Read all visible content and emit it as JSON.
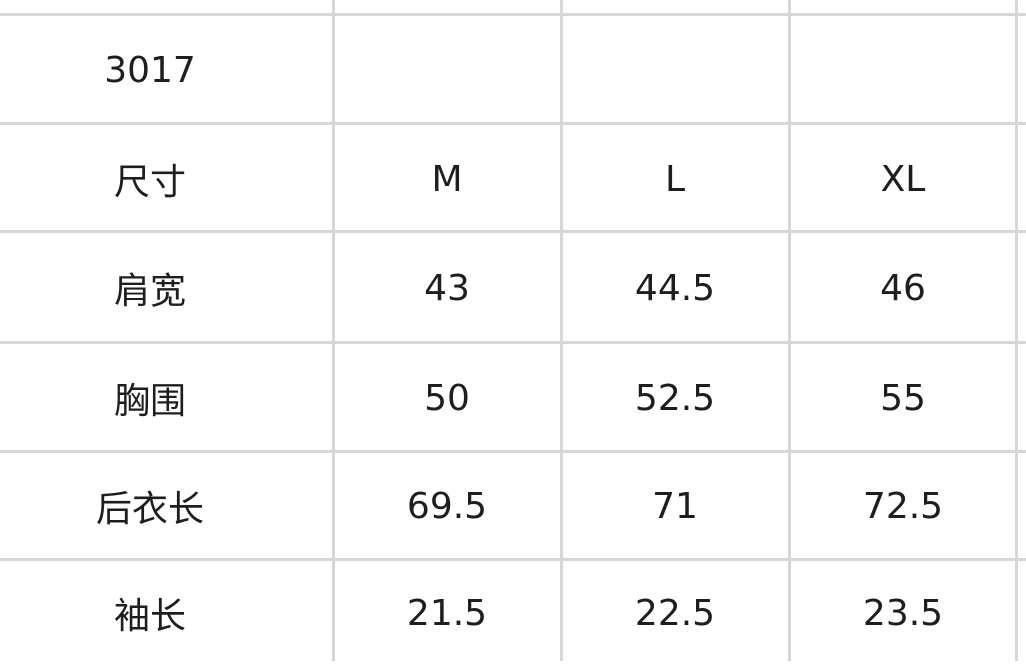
{
  "table": {
    "title": "3017",
    "header": [
      "尺寸",
      "M",
      "L",
      "XL"
    ],
    "rows": [
      [
        "肩宽",
        "43",
        "44.5",
        "46"
      ],
      [
        "胸围",
        "50",
        "52.5",
        "55"
      ],
      [
        "后衣长",
        "69.5",
        "71",
        "72.5"
      ],
      [
        "袖长",
        "21.5",
        "22.5",
        "23.5"
      ]
    ]
  },
  "colors": {
    "grid": "#d7d7d7",
    "text": "#1e1e1e"
  }
}
